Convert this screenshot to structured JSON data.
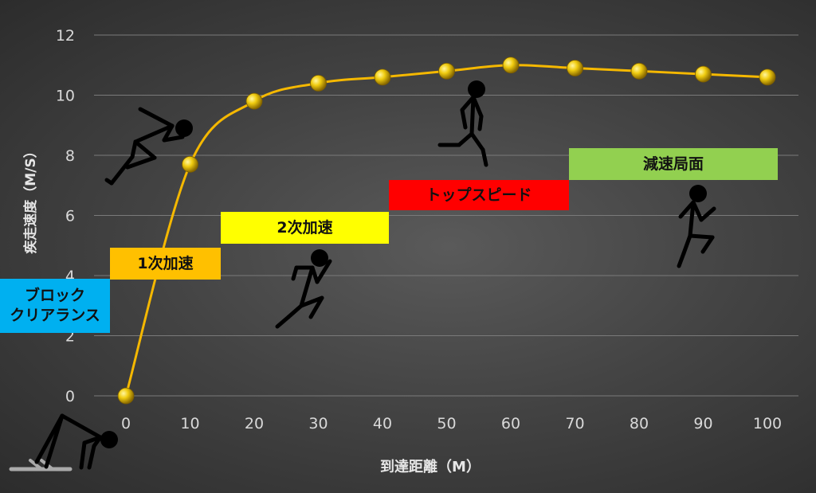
{
  "chart_data": {
    "type": "line",
    "title": "",
    "xlabel": "到達距離（M）",
    "ylabel": "疾走速度（M/S）",
    "x": [
      0,
      10,
      20,
      30,
      40,
      50,
      60,
      70,
      80,
      90,
      100
    ],
    "y": [
      0,
      7.7,
      9.8,
      10.4,
      10.6,
      10.8,
      11.0,
      10.9,
      10.8,
      10.7,
      10.6
    ],
    "xlim": [
      0,
      100
    ],
    "ylim": [
      0,
      12
    ],
    "xticks": [
      "0",
      "10",
      "20",
      "30",
      "40",
      "50",
      "60",
      "70",
      "80",
      "90",
      "100"
    ],
    "yticks": [
      "0",
      "2",
      "4",
      "6",
      "8",
      "10",
      "12"
    ],
    "grid": true,
    "line_color": "#f5b800",
    "marker_color": "#e8c200"
  },
  "phases": [
    {
      "lines": [
        "ブロック",
        "クリアランス"
      ],
      "color": "#00b0f0"
    },
    {
      "lines": [
        "1次加速"
      ],
      "color": "#ffc000"
    },
    {
      "lines": [
        "2次加速"
      ],
      "color": "#ffff00"
    },
    {
      "lines": [
        "トップスピード"
      ],
      "color": "#ff0000"
    },
    {
      "lines": [
        "減速局面"
      ],
      "color": "#92d050"
    }
  ]
}
